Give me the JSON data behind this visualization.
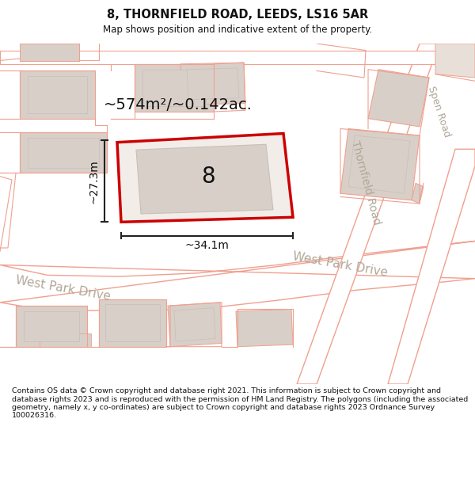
{
  "title": "8, THORNFIELD ROAD, LEEDS, LS16 5AR",
  "subtitle": "Map shows position and indicative extent of the property.",
  "footer": "Contains OS data © Crown copyright and database right 2021. This information is subject to Crown copyright and database rights 2023 and is reproduced with the permission of HM Land Registry. The polygons (including the associated geometry, namely x, y co-ordinates) are subject to Crown copyright and database rights 2023 Ordnance Survey 100026316.",
  "area_text": "~574m²/~0.142ac.",
  "width_text": "~34.1m",
  "height_text": "~27.3m",
  "property_number": "8",
  "map_bg": "#f2ede8",
  "road_fill": "#ffffff",
  "road_stroke": "#f0a090",
  "building_fill": "#d8d0c8",
  "building_stroke": "#c8c0b8",
  "highlight_stroke": "#cc0000",
  "road_label_color": "#b0a898",
  "dim_line_color": "#222222",
  "title_fontsize": 10.5,
  "subtitle_fontsize": 8.5,
  "footer_fontsize": 6.8,
  "number_fontsize": 20,
  "area_fontsize": 14,
  "dim_fontsize": 10,
  "road_label_fontsize": 11
}
